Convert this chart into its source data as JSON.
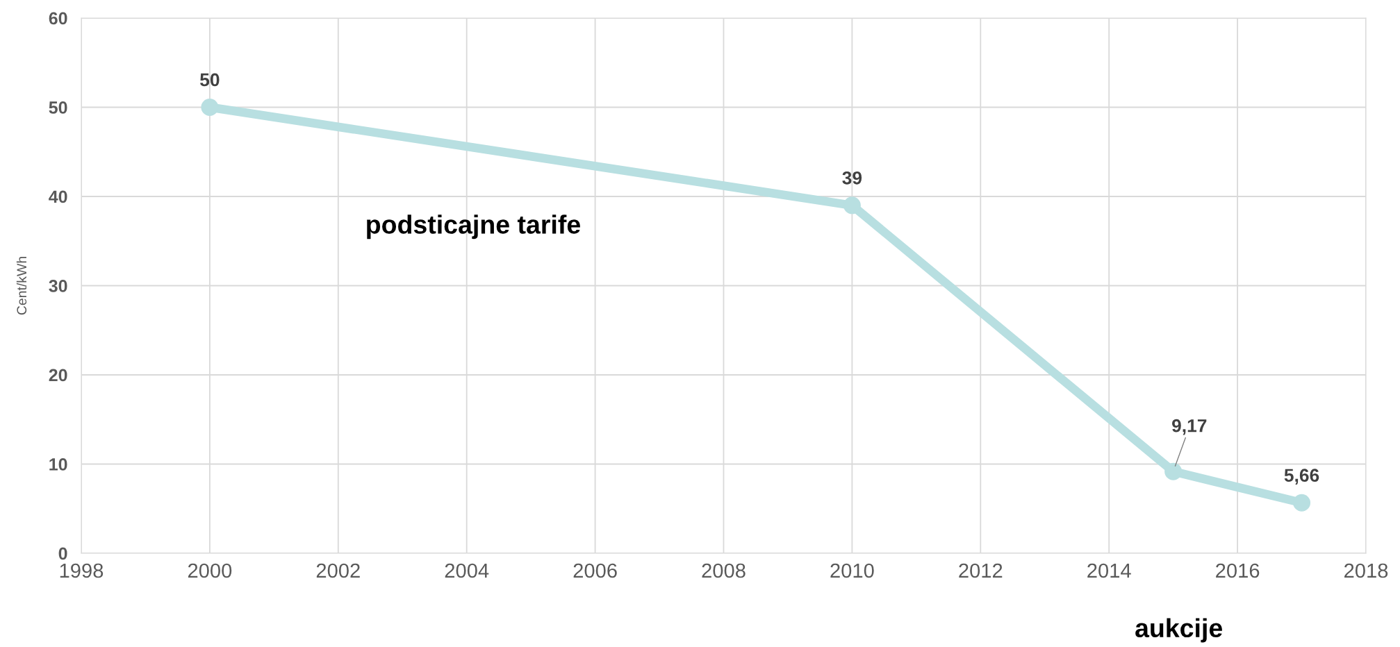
{
  "chart_data": {
    "type": "line",
    "ylabel": "Cent/kWh",
    "x": [
      2000,
      2010,
      2015,
      2017
    ],
    "series": [
      {
        "color": "#b8dfe1",
        "values": [
          50,
          39,
          9.17,
          5.66
        ],
        "value_labels": [
          "50",
          "39",
          "9,17",
          "5,66"
        ]
      }
    ],
    "xlim": [
      1998,
      2018
    ],
    "xticks": [
      1998,
      2000,
      2002,
      2004,
      2006,
      2008,
      2010,
      2012,
      2014,
      2016,
      2018
    ],
    "ylim": [
      0,
      60
    ],
    "yticks": [
      0,
      10,
      20,
      30,
      40,
      50,
      60
    ],
    "grid": true,
    "marker": "circle",
    "line_style": "solid",
    "annotations": [
      "podsticajne tarife",
      "aukcije"
    ]
  }
}
